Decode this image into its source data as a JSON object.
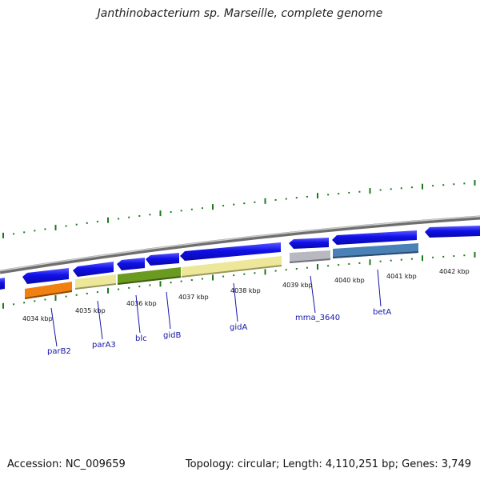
{
  "title": "Janthinobacterium sp. Marseille, complete genome",
  "footer": {
    "accession": "Accession: NC_009659",
    "summary": "Topology: circular; Length: 4,110,251 bp; Genes: 3,749"
  },
  "colors": {
    "forward_strand": "#1010e8",
    "backbone": "#8a8a8a",
    "ticks": "#1c7a1c",
    "label_text": "#1515a8"
  },
  "kbp_ticks": [
    "4034 kbp",
    "4035 kbp",
    "4036 kbp",
    "4037 kbp",
    "4038 kbp",
    "4039 kbp",
    "4040 kbp",
    "4041 kbp",
    "4042 kbp"
  ],
  "genes": [
    {
      "name": "parB2",
      "color": "#f08010"
    },
    {
      "name": "parA3",
      "color": "#ede79a"
    },
    {
      "name": "blc",
      "color": "#6a9a20"
    },
    {
      "name": "gidB",
      "color": "#6a9a20"
    },
    {
      "name": "gidA",
      "color": "#ede79a"
    },
    {
      "name": "mma_3640",
      "color": "#b8b8c0"
    },
    {
      "name": "betA",
      "color": "#4a82b8"
    }
  ]
}
